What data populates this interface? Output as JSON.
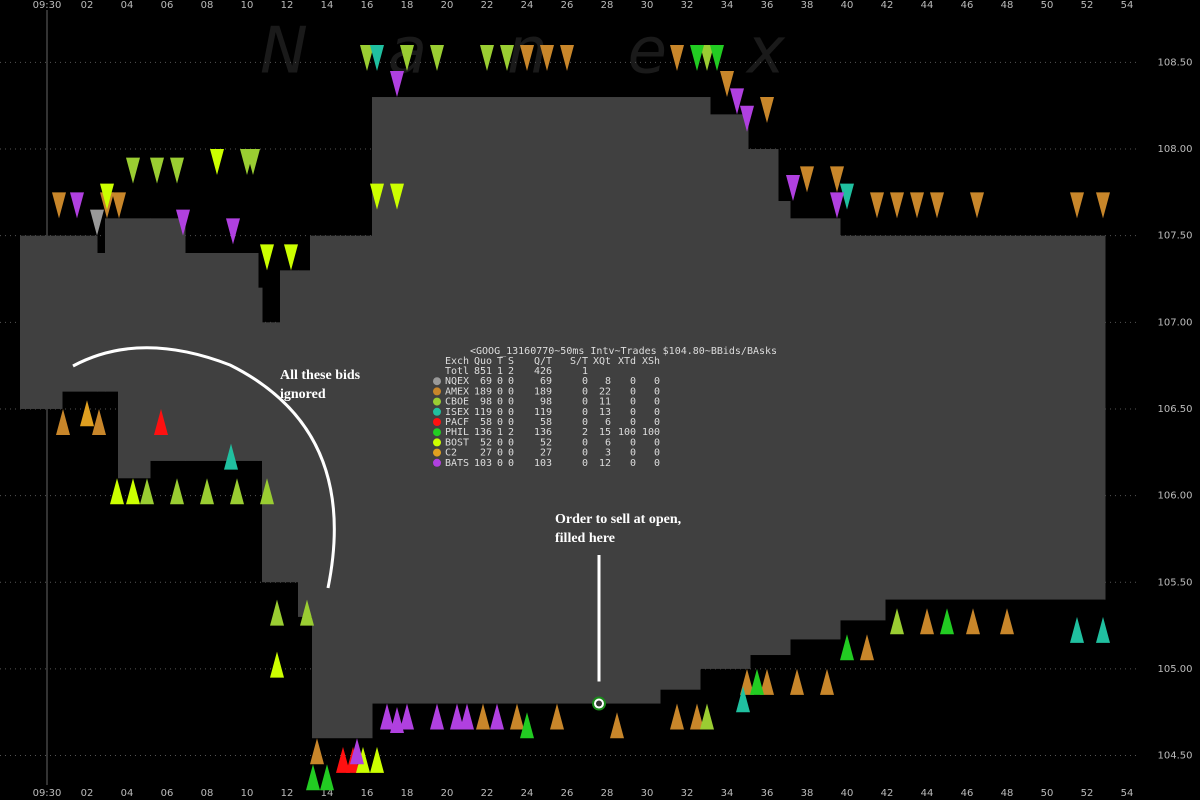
{
  "chart_data": {
    "type": "spread",
    "title": "<GOOG_13160770~50ms Intv~Trades $104.80~BBids/BAsks",
    "watermark": "Nanex",
    "annotations": [
      "All these bids",
      "ignored",
      "Order to sell at open,",
      "filled here"
    ],
    "xlim": [
      -2.35,
      54.65
    ],
    "ylim": [
      104.33,
      108.86
    ],
    "xticks": [
      {
        "value": 0,
        "label": "09:30"
      },
      {
        "value": 2,
        "label": "02"
      },
      {
        "value": 4,
        "label": "04"
      },
      {
        "value": 6,
        "label": "06"
      },
      {
        "value": 8,
        "label": "08"
      },
      {
        "value": 10,
        "label": "10"
      },
      {
        "value": 12,
        "label": "12"
      },
      {
        "value": 14,
        "label": "14"
      },
      {
        "value": 16,
        "label": "16"
      },
      {
        "value": 18,
        "label": "18"
      },
      {
        "value": 20,
        "label": "20"
      },
      {
        "value": 22,
        "label": "22"
      },
      {
        "value": 24,
        "label": "24"
      },
      {
        "value": 26,
        "label": "26"
      },
      {
        "value": 28,
        "label": "28"
      },
      {
        "value": 30,
        "label": "30"
      },
      {
        "value": 32,
        "label": "32"
      },
      {
        "value": 34,
        "label": "34"
      },
      {
        "value": 36,
        "label": "36"
      },
      {
        "value": 38,
        "label": "38"
      },
      {
        "value": 40,
        "label": "40"
      },
      {
        "value": 42,
        "label": "42"
      },
      {
        "value": 44,
        "label": "44"
      },
      {
        "value": 46,
        "label": "46"
      },
      {
        "value": 48,
        "label": "48"
      },
      {
        "value": 50,
        "label": "50"
      },
      {
        "value": 52,
        "label": "52"
      },
      {
        "value": 54,
        "label": "54"
      }
    ],
    "yticks": [
      {
        "value": 104.5,
        "label": "104.50"
      },
      {
        "value": 105,
        "label": "105.00"
      },
      {
        "value": 105.5,
        "label": "105.50"
      },
      {
        "value": 106,
        "label": "106.00"
      },
      {
        "value": 106.5,
        "label": "106.50"
      },
      {
        "value": 107,
        "label": "107.00"
      },
      {
        "value": 107.5,
        "label": "107.50"
      },
      {
        "value": 108,
        "label": "108.00"
      },
      {
        "value": 108.5,
        "label": "108.50"
      }
    ],
    "grid": true,
    "band_color": "#404040",
    "x": [
      -1.35,
      0.5,
      0.75,
      2.5,
      2.9,
      3.55,
      5.15,
      6.9,
      10.55,
      10.75,
      11.65,
      12.55,
      13.15,
      13.25,
      16.25,
      30.65,
      32.65,
      33.15,
      35.05,
      35.15,
      36.55,
      37.15,
      39.65,
      41.9,
      52.9
    ],
    "ask": [
      107.5,
      107.5,
      107.5,
      107.4,
      107.6,
      107.6,
      107.6,
      107.4,
      107.2,
      107.0,
      107.3,
      107.3,
      107.5,
      107.5,
      108.3,
      108.3,
      108.3,
      108.2,
      108.0,
      108.0,
      107.7,
      107.6,
      107.5,
      107.5,
      107.5
    ],
    "bid": [
      106.5,
      106.5,
      106.6,
      106.6,
      106.6,
      106.1,
      106.2,
      106.2,
      106.2,
      105.5,
      105.5,
      105.3,
      105.3,
      104.6,
      104.8,
      104.88,
      105.0,
      105.0,
      105.0,
      105.08,
      105.08,
      105.17,
      105.28,
      105.4,
      105.4
    ],
    "trade": {
      "x": 27.6,
      "y": 104.8
    },
    "columns": [
      "Exch",
      "Quo",
      "T",
      "S",
      "Q/T",
      "S/T",
      "XQt",
      "XTd",
      "XSh"
    ],
    "total": {
      "name": "Totl",
      "stats": [
        851,
        1,
        2,
        426,
        1
      ]
    },
    "series": [
      {
        "name": "NQEX",
        "color": "#999999",
        "stats": [
          69,
          0,
          0,
          69,
          0,
          8,
          0,
          0
        ],
        "ask_x": [
          2.5
        ],
        "ask": [
          107.5
        ],
        "bid_x": [],
        "bid": []
      },
      {
        "name": "AMEX",
        "color": "#c8862a",
        "stats": [
          189,
          0,
          0,
          189,
          0,
          22,
          0,
          0
        ],
        "ask_x": [
          0.6,
          3,
          3.6,
          24,
          25,
          26,
          31.5,
          34,
          36,
          38,
          39.5,
          41.5,
          42.5,
          43.5,
          44.5,
          46.5,
          51.5,
          52.8
        ],
        "ask": [
          107.6,
          107.6,
          107.6,
          108.45,
          108.45,
          108.45,
          108.45,
          108.3,
          108.15,
          107.75,
          107.75,
          107.6,
          107.6,
          107.6,
          107.6,
          107.6,
          107.6,
          107.6
        ],
        "bid_x": [
          0.8,
          2.6,
          13.5,
          21.8,
          23.5,
          25.5,
          28.5,
          31.5,
          32.5,
          35,
          36,
          37.5,
          39,
          41,
          44,
          46.3,
          48
        ],
        "bid": [
          106.5,
          106.5,
          104.6,
          104.8,
          104.8,
          104.8,
          104.75,
          104.8,
          104.8,
          105.0,
          105.0,
          105.0,
          105.0,
          105.2,
          105.35,
          105.35,
          105.35
        ]
      },
      {
        "name": "CBOE",
        "color": "#9acd32",
        "stats": [
          98,
          0,
          0,
          98,
          0,
          11,
          0,
          0
        ],
        "ask_x": [
          4.3,
          5.5,
          6.5,
          10,
          10.3,
          16,
          18,
          19.5,
          22,
          23,
          33
        ],
        "ask": [
          107.8,
          107.8,
          107.8,
          107.85,
          107.85,
          108.45,
          108.45,
          108.45,
          108.45,
          108.45,
          108.45
        ],
        "bid_x": [
          5,
          6.5,
          8,
          9.5,
          11,
          11.5,
          13,
          33,
          42.5
        ],
        "bid": [
          106.1,
          106.1,
          106.1,
          106.1,
          106.1,
          105.4,
          105.4,
          104.8,
          105.35
        ]
      },
      {
        "name": "ISEX",
        "color": "#20c0a0",
        "stats": [
          119,
          0,
          0,
          119,
          0,
          13,
          0,
          0
        ],
        "ask_x": [
          16.5,
          40
        ],
        "ask": [
          108.45,
          107.65
        ],
        "bid_x": [
          9.2,
          34.8,
          51.5,
          52.8
        ],
        "bid": [
          106.3,
          104.9,
          105.3,
          105.3
        ]
      },
      {
        "name": "PACF",
        "color": "#ff1010",
        "stats": [
          58,
          0,
          0,
          58,
          0,
          6,
          0,
          0
        ],
        "ask_x": [],
        "ask": [],
        "bid_x": [
          5.7,
          14.8,
          15.3
        ],
        "bid": [
          106.5,
          104.55,
          104.55
        ]
      },
      {
        "name": "PHIL",
        "color": "#22cc22",
        "stats": [
          136,
          1,
          2,
          136,
          2,
          15,
          100,
          100
        ],
        "ask_x": [
          32.5,
          33.5
        ],
        "ask": [
          108.45,
          108.45
        ],
        "bid_x": [
          13.3,
          14,
          24,
          35.5,
          40,
          45
        ],
        "bid": [
          104.45,
          104.45,
          104.75,
          105.0,
          105.2,
          105.35
        ]
      },
      {
        "name": "BOST",
        "color": "#ccff00",
        "stats": [
          52,
          0,
          0,
          52,
          0,
          6,
          0,
          0
        ],
        "ask_x": [
          3,
          8.5,
          11,
          12.2,
          16.5,
          17.5
        ],
        "ask": [
          107.65,
          107.85,
          107.3,
          107.3,
          107.65,
          107.65
        ],
        "bid_x": [
          3.5,
          4.3,
          11.5,
          15.8,
          16.5
        ],
        "bid": [
          106.1,
          106.1,
          105.1,
          104.55,
          104.55
        ]
      },
      {
        "name": "C2",
        "color": "#e0a020",
        "stats": [
          27,
          0,
          0,
          27,
          0,
          3,
          0,
          0
        ],
        "ask_x": [],
        "ask": [],
        "bid_x": [
          2
        ],
        "bid": [
          106.55
        ]
      },
      {
        "name": "BATS",
        "color": "#b040e0",
        "stats": [
          103,
          0,
          0,
          103,
          0,
          12,
          0,
          0
        ],
        "ask_x": [
          1.5,
          6.8,
          9.3,
          17.5,
          34.5,
          35,
          37.3,
          39.5
        ],
        "ask": [
          107.6,
          107.5,
          107.45,
          108.3,
          108.2,
          108.1,
          107.7,
          107.6
        ],
        "bid_x": [
          15.5,
          17,
          17.5,
          18,
          19.5,
          20.5,
          21,
          22.5
        ],
        "bid": [
          104.6,
          104.8,
          104.78,
          104.8,
          104.8,
          104.8,
          104.8,
          104.8
        ]
      }
    ]
  }
}
